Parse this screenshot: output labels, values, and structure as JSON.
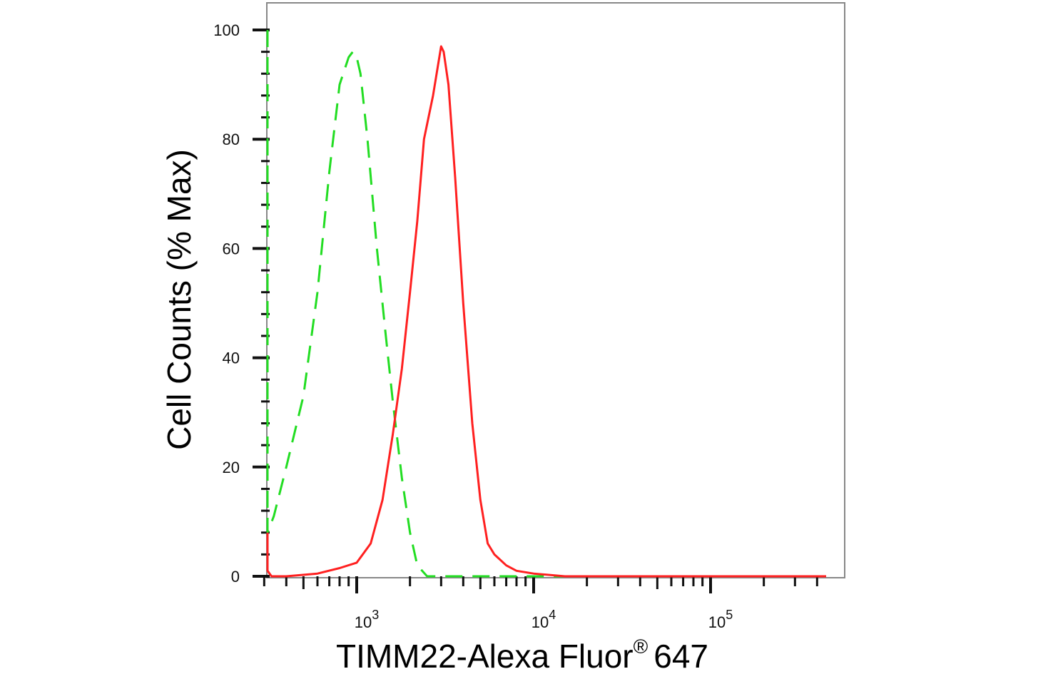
{
  "chart_data": {
    "type": "line",
    "title": "",
    "xlabel": "TIMM22-Alexa Fluor",
    "xlabel_superscript": "®",
    "xlabel_suffix": "647",
    "ylabel": "Cell Counts (% Max)",
    "xscale": "log",
    "xlim": [
      270,
      450000
    ],
    "ylim": [
      0,
      105
    ],
    "grid": false,
    "y_ticks": [
      0,
      20,
      40,
      60,
      80,
      100
    ],
    "x_major_ticks": [
      {
        "value": 1000,
        "base": "10",
        "exp": "3"
      },
      {
        "value": 10000,
        "base": "10",
        "exp": "4"
      },
      {
        "value": 100000,
        "base": "10",
        "exp": "5"
      }
    ],
    "series": [
      {
        "color": "#22dd22",
        "style": "dashed",
        "x": [
          275,
          280,
          300,
          340,
          400,
          500,
          600,
          700,
          800,
          900,
          950,
          1000,
          1050,
          1150,
          1300,
          1450,
          1600,
          1800,
          2000,
          2200,
          2500,
          3000,
          4000,
          6000,
          10000,
          20000,
          50000,
          100000,
          200000,
          450000
        ],
        "values": [
          100,
          10,
          8,
          11,
          20,
          33,
          52,
          74,
          90,
          95,
          96,
          95,
          92,
          80,
          60,
          45,
          32,
          18,
          8,
          2,
          0,
          0,
          0,
          0,
          0,
          0,
          0,
          0,
          0,
          0
        ]
      },
      {
        "color": "#ff2020",
        "style": "solid",
        "x": [
          275,
          285,
          300,
          330,
          400,
          600,
          800,
          1000,
          1200,
          1400,
          1600,
          1800,
          2000,
          2200,
          2400,
          2700,
          3000,
          3100,
          3300,
          3600,
          4000,
          4500,
          5000,
          5500,
          6000,
          7000,
          8000,
          10000,
          15000,
          30000,
          100000,
          450000
        ],
        "values": [
          8,
          4,
          1,
          0,
          0,
          0.5,
          1.5,
          2.5,
          6,
          14,
          26,
          38,
          52,
          65,
          80,
          88,
          97,
          96,
          90,
          73,
          50,
          28,
          14,
          6,
          4,
          2,
          1,
          0.5,
          0,
          0,
          0,
          0
        ]
      }
    ]
  }
}
